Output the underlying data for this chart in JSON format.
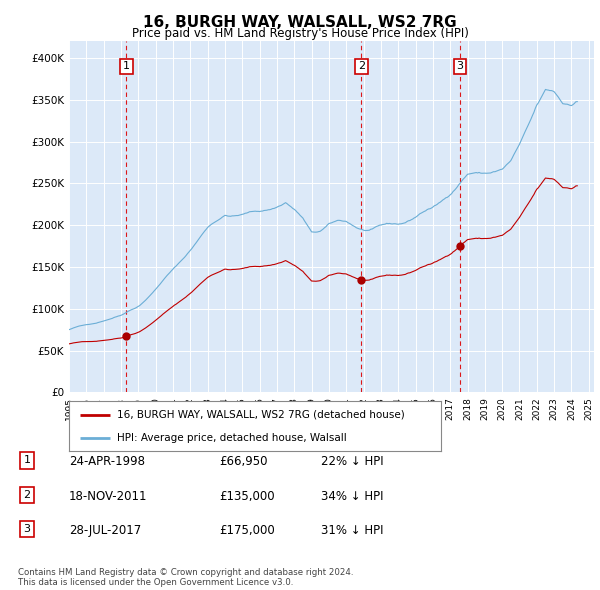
{
  "title": "16, BURGH WAY, WALSALL, WS2 7RG",
  "subtitle": "Price paid vs. HM Land Registry's House Price Index (HPI)",
  "plot_bg_color": "#dce9f8",
  "ylabel": "",
  "ylim": [
    0,
    420000
  ],
  "yticks": [
    0,
    50000,
    100000,
    150000,
    200000,
    250000,
    300000,
    350000,
    400000
  ],
  "ytick_labels": [
    "£0",
    "£50K",
    "£100K",
    "£150K",
    "£200K",
    "£250K",
    "£300K",
    "£350K",
    "£400K"
  ],
  "sale_dates": [
    1998.31,
    2011.88,
    2017.57
  ],
  "sale_prices": [
    66950,
    135000,
    175000
  ],
  "sale_labels": [
    "1",
    "2",
    "3"
  ],
  "legend_line1": "16, BURGH WAY, WALSALL, WS2 7RG (detached house)",
  "legend_line2": "HPI: Average price, detached house, Walsall",
  "table_data": [
    [
      "1",
      "24-APR-1998",
      "£66,950",
      "22% ↓ HPI"
    ],
    [
      "2",
      "18-NOV-2011",
      "£135,000",
      "34% ↓ HPI"
    ],
    [
      "3",
      "28-JUL-2017",
      "£175,000",
      "31% ↓ HPI"
    ]
  ],
  "footnote": "Contains HM Land Registry data © Crown copyright and database right 2024.\nThis data is licensed under the Open Government Licence v3.0.",
  "hpi_color": "#6baed6",
  "price_color": "#c00000",
  "xlim_start": 1995.0,
  "xlim_end": 2025.3,
  "xtick_years": [
    1995,
    1996,
    1997,
    1998,
    1999,
    2000,
    2001,
    2002,
    2003,
    2004,
    2005,
    2006,
    2007,
    2008,
    2009,
    2010,
    2011,
    2012,
    2013,
    2014,
    2015,
    2016,
    2017,
    2018,
    2019,
    2020,
    2021,
    2022,
    2023,
    2024,
    2025
  ]
}
